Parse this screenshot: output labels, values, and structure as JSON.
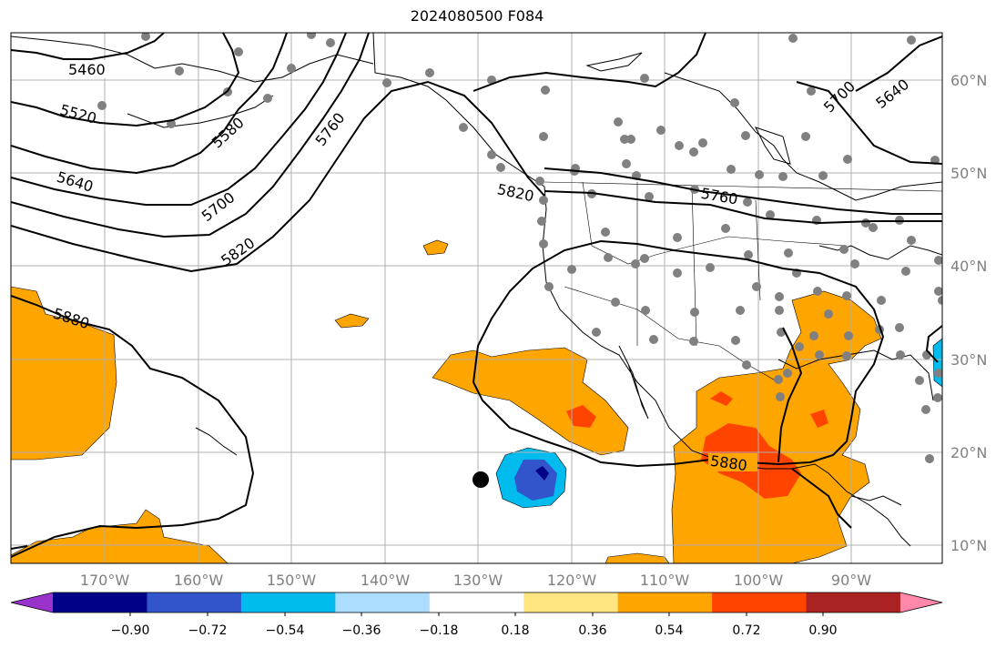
{
  "title": "2024080500 F084",
  "map": {
    "lon_labels": [
      "170°W",
      "160°W",
      "150°W",
      "140°W",
      "130°W",
      "120°W",
      "110°W",
      "100°W",
      "90°W"
    ],
    "lat_labels": [
      "60°N",
      "50°N",
      "40°N",
      "30°N",
      "20°N",
      "10°N"
    ],
    "contour_labels": [
      "5460",
      "5520",
      "5580",
      "5640",
      "5700",
      "5760",
      "5820",
      "5880",
      "5640",
      "5700",
      "5760",
      "5820",
      "5880"
    ]
  },
  "colorbar": {
    "ticks": [
      "−0.90",
      "−0.72",
      "−0.54",
      "−0.36",
      "−0.18",
      "0.18",
      "0.36",
      "0.54",
      "0.72",
      "0.90"
    ],
    "colors": [
      "#9933cc",
      "#000088",
      "#3355cc",
      "#00bbee",
      "#aaddff",
      "#ffffff",
      "#ffe680",
      "#ffa500",
      "#ff4400",
      "#aa2222",
      "#ff88aa"
    ]
  }
}
